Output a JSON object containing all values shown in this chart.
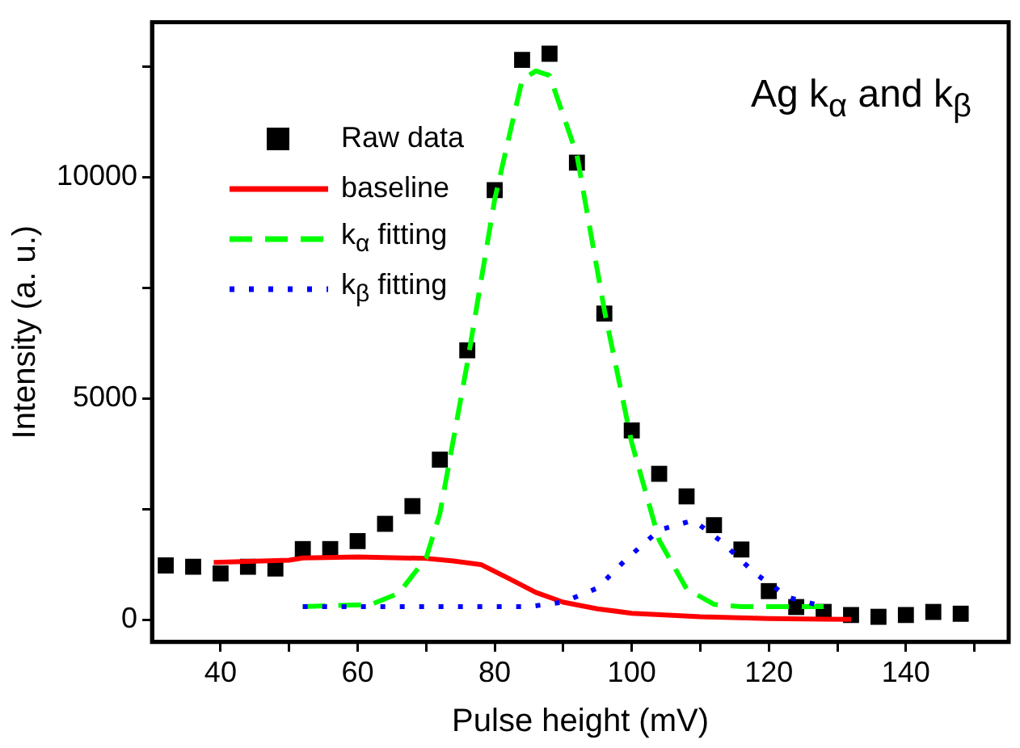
{
  "chart_data": {
    "type": "scatter",
    "xlabel": "Pulse height (mV)",
    "ylabel": "Intensity (a. u.)",
    "annotations": [
      "Ag k$_{α}$ and k$_{β}$"
    ],
    "xlim": [
      30,
      155
    ],
    "xticks": [
      40,
      {
        "value": 50,
        "label": null
      },
      60,
      {
        "value": 70,
        "label": null
      },
      80,
      {
        "value": 90,
        "label": null
      },
      100,
      {
        "value": 110,
        "label": null
      },
      120,
      {
        "value": 130,
        "label": null
      },
      140,
      {
        "value": 150,
        "label": null
      }
    ],
    "ylim": [
      -500,
      13500
    ],
    "yticks": [
      0,
      {
        "value": 2500,
        "label": null
      },
      5000,
      {
        "value": 7500,
        "label": null
      },
      10000,
      {
        "value": 12500,
        "label": null
      }
    ],
    "grid": false,
    "legend": "top left",
    "series": [
      {
        "name": "Raw data",
        "marker": "square",
        "color": "#000000",
        "x": [
          32,
          36,
          40,
          44,
          48,
          52,
          56,
          60,
          64,
          68,
          72,
          76,
          80,
          84,
          88,
          92,
          96,
          100,
          104,
          108,
          112,
          116,
          120,
          124,
          128,
          132,
          136,
          140,
          144,
          148
        ],
        "values": [
          1230,
          1200,
          1050,
          1200,
          1160,
          1600,
          1600,
          1780,
          2170,
          2570,
          3620,
          6090,
          9710,
          12650,
          12790,
          10330,
          6920,
          4280,
          3300,
          2790,
          2140,
          1590,
          650,
          290,
          180,
          110,
          70,
          110,
          180,
          140
        ]
      },
      {
        "name": "baseline",
        "type": "line",
        "marker": "none",
        "line_style": "solid",
        "color": "#ff0000",
        "x": [
          39,
          50,
          52,
          60,
          70,
          74,
          78,
          82,
          86,
          90,
          95,
          100,
          110,
          120,
          132
        ],
        "values": [
          1300,
          1350,
          1400,
          1420,
          1390,
          1330,
          1250,
          940,
          620,
          400,
          250,
          150,
          70,
          30,
          10
        ]
      },
      {
        "name": "k$_{α}$ fitting",
        "type": "line",
        "marker": "none",
        "line_style": "dashed",
        "color": "#00ff00",
        "x": [
          52,
          62,
          66,
          70,
          72,
          76,
          80,
          84,
          86,
          88,
          92,
          96,
          100,
          104,
          108,
          112,
          116,
          128
        ],
        "values": [
          300,
          350,
          600,
          1400,
          2400,
          5800,
          9500,
          12200,
          12400,
          12300,
          10500,
          7000,
          4000,
          1800,
          700,
          350,
          300,
          300
        ]
      },
      {
        "name": "k$_{β}$ fitting",
        "type": "line",
        "marker": "none",
        "line_style": "dotted",
        "color": "#0000ff",
        "x": [
          52,
          70,
          85,
          90,
          95,
          99,
          104,
          109,
          113,
          118,
          123,
          128
        ],
        "values": [
          300,
          300,
          300,
          400,
          720,
          1340,
          2030,
          2250,
          1780,
          1050,
          500,
          300
        ]
      }
    ]
  }
}
